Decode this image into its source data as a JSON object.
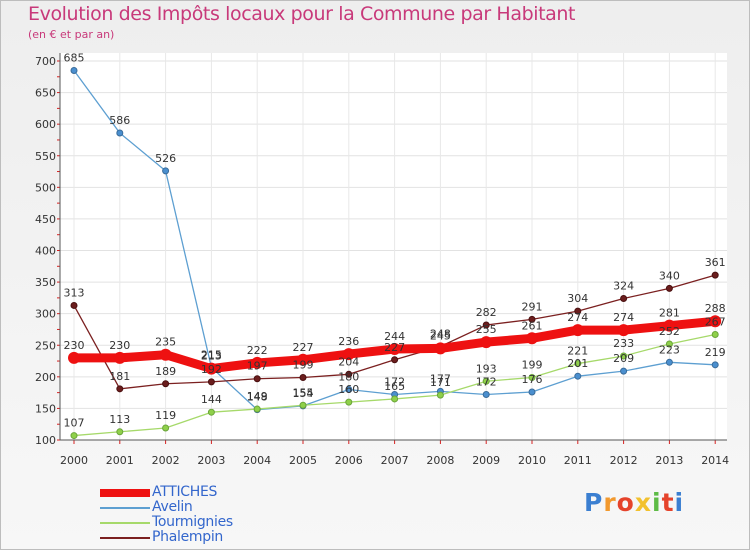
{
  "header": {
    "title": "Evolution des Impôts locaux pour la Commune par Habitant",
    "subtitle": "(en € et par an)"
  },
  "logo": {
    "text": "Proxiti",
    "letters": [
      "P",
      "r",
      "o",
      "x",
      "i",
      "t",
      "i"
    ],
    "colors": [
      "#3b7fd1",
      "#f2992e",
      "#e5432b",
      "#f2c12e",
      "#5dbb46",
      "#e5432b",
      "#3b7fd1"
    ]
  },
  "chart_data": {
    "type": "line",
    "title": "Evolution des Impôts locaux pour la Commune par Habitant",
    "subtitle": "(en € et par an)",
    "x": [
      "2000",
      "2001",
      "2002",
      "2003",
      "2004",
      "2005",
      "2006",
      "2007",
      "2008",
      "2009",
      "2010",
      "2011",
      "2012",
      "2013",
      "2014"
    ],
    "ylim": [
      100,
      700
    ],
    "yticks": [
      100,
      150,
      200,
      250,
      300,
      350,
      400,
      450,
      500,
      550,
      600,
      650,
      700
    ],
    "grid": true,
    "legend_position": "bottom-left",
    "series": [
      {
        "name": "ATTICHES",
        "color": "#ee1111",
        "values": [
          230,
          230,
          235,
          213,
          222,
          227,
          236,
          244,
          245,
          255,
          261,
          274,
          274,
          281,
          288
        ],
        "labels": [
          "230",
          "230",
          "235",
          "213",
          "222",
          "227",
          "236",
          "244",
          "245",
          "255",
          "261",
          "274",
          "274",
          "281",
          "288"
        ]
      },
      {
        "name": "Avelin",
        "color": "#5d9fd1",
        "values": [
          685,
          586,
          526,
          215,
          148,
          154,
          180,
          172,
          177,
          172,
          176,
          201,
          209,
          223,
          219
        ],
        "labels": [
          "685",
          "586",
          "526",
          "215",
          "148",
          "154",
          "180",
          "172",
          "177",
          "172",
          "176",
          "201",
          "209",
          "223",
          "219"
        ]
      },
      {
        "name": "Tourmignies",
        "color": "#a6d96a",
        "values": [
          107,
          113,
          119,
          144,
          149,
          155,
          160,
          165,
          171,
          193,
          199,
          221,
          233,
          252,
          267
        ],
        "labels": [
          "107",
          "113",
          "119",
          "144",
          "149",
          "155",
          "160",
          "165",
          "171",
          "193",
          "199",
          "221",
          "233",
          "252",
          "267"
        ]
      },
      {
        "name": "Phalempin",
        "color": "#7b2020",
        "values": [
          313,
          181,
          189,
          192,
          197,
          199,
          204,
          227,
          248,
          282,
          291,
          304,
          324,
          340,
          361
        ],
        "labels": [
          "313",
          "181",
          "189",
          "192",
          "197",
          "199",
          "204",
          "227",
          "248",
          "282",
          "291",
          "304",
          "324",
          "340",
          "361"
        ]
      }
    ]
  }
}
